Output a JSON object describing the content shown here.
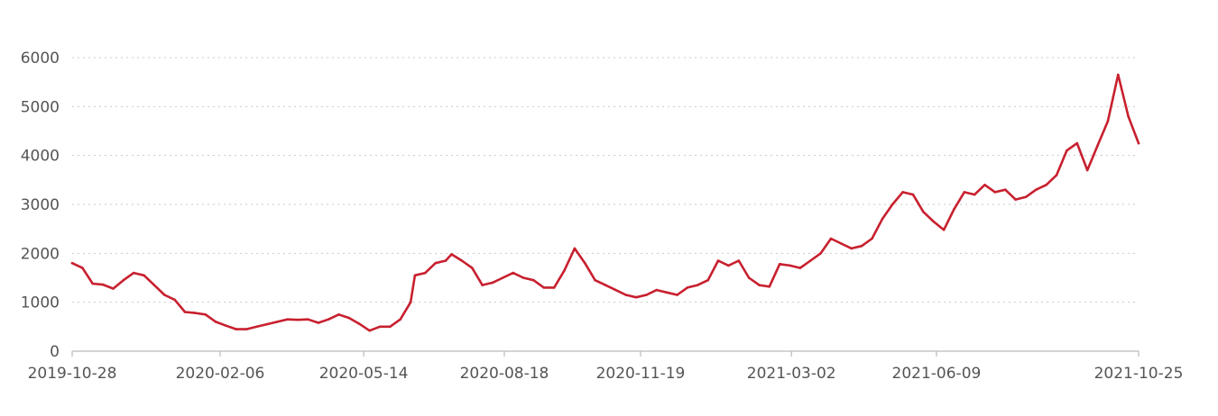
{
  "chart_data": {
    "type": "line",
    "title": "",
    "xlabel": "",
    "ylabel": "",
    "ylim": [
      0,
      6000
    ],
    "y_ticks": [
      "0",
      "1000",
      "2000",
      "3000",
      "4000",
      "5000",
      "6000"
    ],
    "x_ticks": [
      "2019-10-28",
      "2020-02-06",
      "2020-05-14",
      "2020-08-18",
      "2020-11-19",
      "2021-03-02",
      "2021-06-09",
      "2021-10-25"
    ],
    "grid": "horizontal dotted",
    "line_color": "#c8202f",
    "series": [
      {
        "name": "",
        "points": [
          [
            "2019-10-28",
            1800
          ],
          [
            "2019-11-04",
            1700
          ],
          [
            "2019-11-11",
            1380
          ],
          [
            "2019-11-18",
            1360
          ],
          [
            "2019-11-25",
            1280
          ],
          [
            "2019-12-02",
            1450
          ],
          [
            "2019-12-09",
            1600
          ],
          [
            "2019-12-16",
            1550
          ],
          [
            "2019-12-23",
            1350
          ],
          [
            "2019-12-30",
            1150
          ],
          [
            "2020-01-06",
            1050
          ],
          [
            "2020-01-13",
            800
          ],
          [
            "2020-01-20",
            780
          ],
          [
            "2020-01-27",
            750
          ],
          [
            "2020-02-03",
            600
          ],
          [
            "2020-02-10",
            520
          ],
          [
            "2020-02-17",
            450
          ],
          [
            "2020-02-24",
            450
          ],
          [
            "2020-03-02",
            500
          ],
          [
            "2020-03-09",
            550
          ],
          [
            "2020-03-16",
            600
          ],
          [
            "2020-03-23",
            650
          ],
          [
            "2020-03-30",
            640
          ],
          [
            "2020-04-06",
            650
          ],
          [
            "2020-04-13",
            580
          ],
          [
            "2020-04-20",
            650
          ],
          [
            "2020-04-27",
            750
          ],
          [
            "2020-05-04",
            680
          ],
          [
            "2020-05-11",
            560
          ],
          [
            "2020-05-18",
            420
          ],
          [
            "2020-05-25",
            500
          ],
          [
            "2020-06-01",
            500
          ],
          [
            "2020-06-08",
            650
          ],
          [
            "2020-06-15",
            1000
          ],
          [
            "2020-06-18",
            1550
          ],
          [
            "2020-06-25",
            1600
          ],
          [
            "2020-07-02",
            1800
          ],
          [
            "2020-07-09",
            1850
          ],
          [
            "2020-07-13",
            1980
          ],
          [
            "2020-07-20",
            1850
          ],
          [
            "2020-07-27",
            1700
          ],
          [
            "2020-08-03",
            1350
          ],
          [
            "2020-08-10",
            1400
          ],
          [
            "2020-08-17",
            1500
          ],
          [
            "2020-08-24",
            1600
          ],
          [
            "2020-08-31",
            1500
          ],
          [
            "2020-09-07",
            1450
          ],
          [
            "2020-09-14",
            1300
          ],
          [
            "2020-09-21",
            1300
          ],
          [
            "2020-09-28",
            1650
          ],
          [
            "2020-10-05",
            2100
          ],
          [
            "2020-10-12",
            1800
          ],
          [
            "2020-10-19",
            1450
          ],
          [
            "2020-10-26",
            1350
          ],
          [
            "2020-11-02",
            1250
          ],
          [
            "2020-11-09",
            1150
          ],
          [
            "2020-11-16",
            1100
          ],
          [
            "2020-11-23",
            1150
          ],
          [
            "2020-11-30",
            1250
          ],
          [
            "2020-12-07",
            1200
          ],
          [
            "2020-12-14",
            1150
          ],
          [
            "2020-12-21",
            1300
          ],
          [
            "2020-12-28",
            1350
          ],
          [
            "2021-01-04",
            1450
          ],
          [
            "2021-01-11",
            1850
          ],
          [
            "2021-01-18",
            1750
          ],
          [
            "2021-01-25",
            1850
          ],
          [
            "2021-02-01",
            1500
          ],
          [
            "2021-02-08",
            1350
          ],
          [
            "2021-02-15",
            1320
          ],
          [
            "2021-02-22",
            1780
          ],
          [
            "2021-03-01",
            1750
          ],
          [
            "2021-03-08",
            1700
          ],
          [
            "2021-03-15",
            1850
          ],
          [
            "2021-03-22",
            2000
          ],
          [
            "2021-03-29",
            2300
          ],
          [
            "2021-04-05",
            2200
          ],
          [
            "2021-04-12",
            2100
          ],
          [
            "2021-04-19",
            2150
          ],
          [
            "2021-04-26",
            2300
          ],
          [
            "2021-05-03",
            2700
          ],
          [
            "2021-05-10",
            3000
          ],
          [
            "2021-05-17",
            3250
          ],
          [
            "2021-05-24",
            3200
          ],
          [
            "2021-05-31",
            2850
          ],
          [
            "2021-06-07",
            2650
          ],
          [
            "2021-06-14",
            2480
          ],
          [
            "2021-06-21",
            2900
          ],
          [
            "2021-06-28",
            3250
          ],
          [
            "2021-07-05",
            3200
          ],
          [
            "2021-07-12",
            3400
          ],
          [
            "2021-07-19",
            3250
          ],
          [
            "2021-07-26",
            3300
          ],
          [
            "2021-08-02",
            3100
          ],
          [
            "2021-08-09",
            3150
          ],
          [
            "2021-08-16",
            3300
          ],
          [
            "2021-08-23",
            3400
          ],
          [
            "2021-08-30",
            3600
          ],
          [
            "2021-09-06",
            4100
          ],
          [
            "2021-09-13",
            4250
          ],
          [
            "2021-09-20",
            3700
          ],
          [
            "2021-09-27",
            4200
          ],
          [
            "2021-10-04",
            4700
          ],
          [
            "2021-10-11",
            5650
          ],
          [
            "2021-10-18",
            4800
          ],
          [
            "2021-10-25",
            4250
          ]
        ]
      }
    ]
  }
}
